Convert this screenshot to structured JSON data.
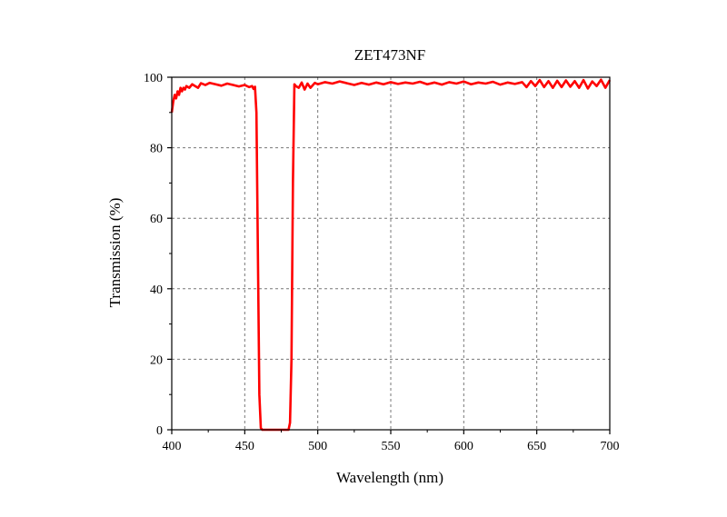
{
  "chart_data": {
    "type": "line",
    "title": "ZET473NF",
    "xlabel": "Wavelength (nm)",
    "ylabel": "Transmission (%)",
    "xlim": [
      400,
      700
    ],
    "ylim": [
      0,
      100
    ],
    "x_ticks": [
      400,
      450,
      500,
      550,
      600,
      650,
      700
    ],
    "y_ticks": [
      0,
      20,
      40,
      60,
      80,
      100
    ],
    "grid": true,
    "legend": "none",
    "series": [
      {
        "color": "#ff0000",
        "x": [
          400,
          401,
          402,
          403,
          404,
          405,
          406,
          407,
          408,
          409,
          410,
          412,
          414,
          416,
          418,
          420,
          423,
          426,
          430,
          434,
          438,
          442,
          446,
          450,
          453,
          455,
          456,
          457,
          458,
          459,
          460,
          461,
          462,
          463,
          470,
          478,
          480,
          481,
          482,
          483,
          484,
          485,
          487,
          489,
          491,
          493,
          495,
          498,
          500,
          505,
          510,
          515,
          520,
          525,
          530,
          535,
          540,
          545,
          550,
          555,
          560,
          565,
          570,
          575,
          580,
          585,
          590,
          595,
          600,
          605,
          610,
          615,
          620,
          625,
          630,
          635,
          640,
          643,
          646,
          649,
          652,
          655,
          658,
          661,
          664,
          667,
          670,
          673,
          676,
          679,
          682,
          685,
          688,
          691,
          694,
          697,
          700
        ],
        "y": [
          90,
          93,
          95,
          94,
          96,
          95,
          97,
          96,
          97,
          96.5,
          97.5,
          97,
          98,
          97.5,
          97,
          98.3,
          97.8,
          98.4,
          98,
          97.6,
          98.2,
          97.8,
          97.4,
          97.8,
          97.2,
          97.5,
          96.7,
          97.3,
          90,
          50,
          10,
          0.5,
          0,
          0,
          0,
          0,
          0,
          2,
          20,
          70,
          98,
          97.5,
          97,
          98.5,
          96.5,
          98.2,
          97,
          98.4,
          98,
          98.6,
          98.2,
          98.8,
          98.3,
          97.8,
          98.4,
          97.9,
          98.5,
          98,
          98.6,
          98.1,
          98.5,
          98.2,
          98.7,
          98,
          98.5,
          97.9,
          98.6,
          98.2,
          98.8,
          98,
          98.5,
          98.2,
          98.7,
          97.9,
          98.5,
          98.1,
          98.6,
          97.2,
          98.9,
          97.5,
          99.2,
          97.2,
          98.9,
          97,
          99,
          97.2,
          99.1,
          97.3,
          98.9,
          97,
          99.2,
          96.8,
          98.8,
          97.5,
          99.3,
          97,
          99.2
        ]
      }
    ]
  }
}
